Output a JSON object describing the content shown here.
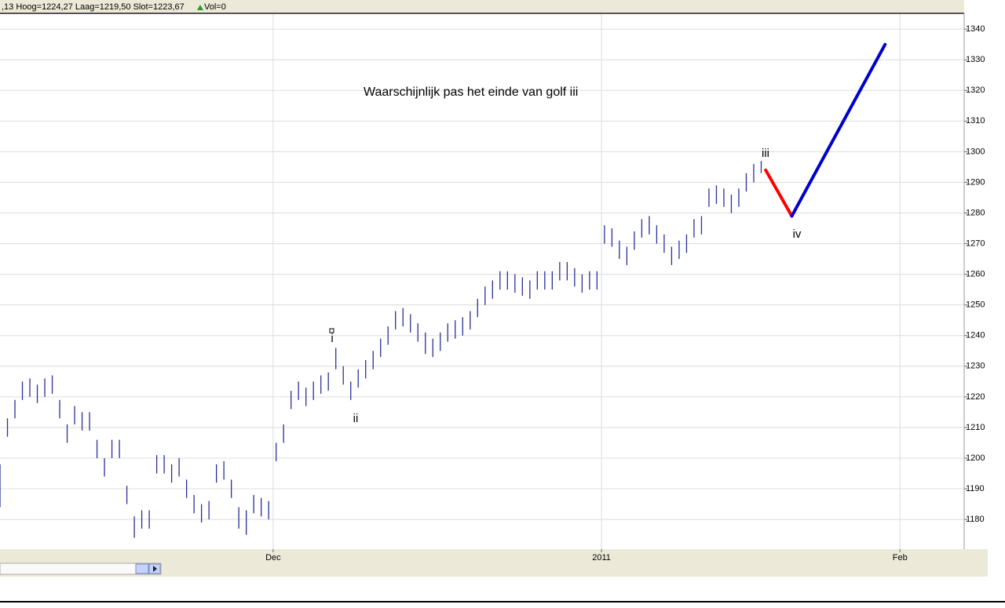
{
  "chart_data": {
    "type": "ohlc",
    "info": ",13 Hoog=1224,27 Laag=1219,50 Slot=1223,67",
    "volume": "Vol=0",
    "color": "#2b2f9a",
    "xlim": [
      0,
      64.6
    ],
    "ylim": [
      1170.3,
      1344.9
    ],
    "yticks": [
      1180,
      1190,
      1200,
      1210,
      1220,
      1230,
      1240,
      1250,
      1260,
      1270,
      1280,
      1290,
      1300,
      1310,
      1320,
      1330,
      1340
    ],
    "xticks": [
      {
        "value": 18.3,
        "label": "Dec"
      },
      {
        "value": 40.3,
        "label": "2011"
      },
      {
        "value": 60.3,
        "label": "Feb"
      }
    ],
    "grid": true,
    "x": [
      0,
      0.5,
      1,
      1.5,
      2,
      2.5,
      3,
      3.5,
      4,
      4.5,
      5,
      5.5,
      6,
      6.5,
      7,
      7.5,
      8,
      8.5,
      9,
      9.5,
      10,
      10.5,
      11,
      11.5,
      12,
      12.5,
      13,
      13.5,
      14,
      14.5,
      15,
      15.5,
      16,
      16.5,
      17,
      17.5,
      18,
      18.5,
      19,
      19.5,
      20,
      20.5,
      21,
      21.5,
      22,
      22.5,
      23,
      23.5,
      24,
      24.5,
      25,
      25.5,
      26,
      26.5,
      27,
      27.5,
      28,
      28.5,
      29,
      29.5,
      30,
      30.5,
      31,
      31.5,
      32,
      32.5,
      33,
      33.5,
      34,
      34.5,
      35,
      35.5,
      36,
      36.5,
      37,
      37.5,
      38,
      38.5,
      39,
      39.5,
      40,
      40.5,
      41,
      41.5,
      42,
      42.5,
      43,
      43.5,
      44,
      44.5,
      45,
      45.5,
      46,
      46.5,
      47,
      47.5,
      48,
      48.5,
      49,
      49.5,
      50,
      50.5,
      51
    ],
    "high": [
      1198,
      1213,
      1219,
      1225,
      1226,
      1224,
      1226,
      1227,
      1219,
      1211,
      1217,
      1215,
      1215,
      1206,
      1200,
      1206,
      1206,
      1191,
      1181,
      1183,
      1183,
      1201,
      1201,
      1198,
      1200,
      1193,
      1188,
      1185,
      1186,
      1198,
      1199,
      1193,
      1184,
      1183,
      1188,
      1187,
      1186,
      1205,
      1211,
      1222,
      1225,
      1223,
      1225,
      1227,
      1228,
      1236,
      1230,
      1225,
      1229,
      1232,
      1235,
      1239,
      1243,
      1248,
      1249,
      1247,
      1244,
      1241,
      1239,
      1241,
      1244,
      1245,
      1246,
      1248,
      1252,
      1256,
      1258,
      1261,
      1261,
      1260,
      1259,
      1258,
      1261,
      1261,
      1261,
      1264,
      1264,
      1262,
      1260,
      1261,
      1261,
      1276,
      1275,
      1271,
      1269,
      1274,
      1278,
      1279,
      1276,
      1273,
      1269,
      1271,
      1273,
      1278,
      1279,
      1288,
      1289,
      1288,
      1286,
      1288,
      1293,
      1296,
      1297
    ],
    "low": [
      1184,
      1207,
      1213,
      1219,
      1220,
      1218,
      1220,
      1221,
      1213,
      1205,
      1211,
      1209,
      1209,
      1200,
      1194,
      1200,
      1200,
      1185,
      1174,
      1177,
      1177,
      1195,
      1195,
      1192,
      1194,
      1187,
      1182,
      1179,
      1180,
      1192,
      1193,
      1187,
      1177,
      1175,
      1182,
      1181,
      1180,
      1199,
      1205,
      1216,
      1219,
      1217,
      1219,
      1221,
      1222,
      1229,
      1224,
      1219,
      1223,
      1226,
      1229,
      1233,
      1237,
      1242,
      1243,
      1241,
      1238,
      1234,
      1233,
      1235,
      1238,
      1239,
      1240,
      1242,
      1246,
      1250,
      1252,
      1255,
      1255,
      1254,
      1253,
      1252,
      1255,
      1255,
      1255,
      1258,
      1258,
      1256,
      1254,
      1255,
      1255,
      1270,
      1269,
      1265,
      1263,
      1268,
      1272,
      1273,
      1270,
      1267,
      1263,
      1265,
      1267,
      1272,
      1273,
      1282,
      1283,
      1282,
      1280,
      1282,
      1287,
      1290,
      1293
    ],
    "projection": [
      {
        "color": "#ff0000",
        "x": [
          51.3,
          53.05
        ],
        "values": [
          1294,
          1279
        ]
      },
      {
        "color": "#0000cc",
        "x": [
          53.05,
          59.3
        ],
        "values": [
          1279,
          1335
        ]
      }
    ],
    "annotations": [
      "Waarschijnlijk pas het einde van golf iii",
      "i",
      "ii",
      "iii",
      "iv"
    ]
  }
}
